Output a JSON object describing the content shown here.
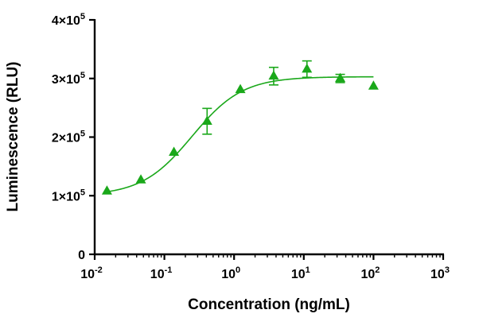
{
  "chart_data": {
    "type": "scatter",
    "xlabel": "Concentration (ng/mL)",
    "ylabel": "Luminescence (RLU)",
    "x_scale": "log",
    "xlim": [
      0.01,
      1000
    ],
    "ylim": [
      0,
      400000
    ],
    "x_ticks": [
      {
        "value": 0.01,
        "base": "10",
        "exp": "-2"
      },
      {
        "value": 0.1,
        "base": "10",
        "exp": "-1"
      },
      {
        "value": 1,
        "base": "10",
        "exp": "0"
      },
      {
        "value": 10,
        "base": "10",
        "exp": "1"
      },
      {
        "value": 100,
        "base": "10",
        "exp": "2"
      },
      {
        "value": 1000,
        "base": "10",
        "exp": "3"
      }
    ],
    "y_ticks": [
      {
        "value": 0,
        "mant": "0",
        "exp": ""
      },
      {
        "value": 100000,
        "mant": "1×10",
        "exp": "5"
      },
      {
        "value": 200000,
        "mant": "2×10",
        "exp": "5"
      },
      {
        "value": 300000,
        "mant": "3×10",
        "exp": "5"
      },
      {
        "value": 400000,
        "mant": "4×10",
        "exp": "5"
      }
    ],
    "grid": false,
    "color": "#1aa81a",
    "series": [
      {
        "marker": "triangle",
        "points": [
          {
            "x": 0.015,
            "y": 108000,
            "err": 0
          },
          {
            "x": 0.046,
            "y": 127000,
            "err": 0
          },
          {
            "x": 0.137,
            "y": 174000,
            "err": 0
          },
          {
            "x": 0.41,
            "y": 227000,
            "err": 22000
          },
          {
            "x": 1.23,
            "y": 281000,
            "err": 0
          },
          {
            "x": 3.7,
            "y": 304000,
            "err": 15000
          },
          {
            "x": 11.1,
            "y": 316000,
            "err": 14000
          },
          {
            "x": 33.3,
            "y": 300000,
            "err": 7000
          },
          {
            "x": 100,
            "y": 287000,
            "err": 0
          }
        ],
        "fit": {
          "model": "4PL",
          "bottom": 100000,
          "top": 303000,
          "ec50": 0.25,
          "hill": 1.2,
          "x_range": [
            0.015,
            100
          ]
        }
      }
    ]
  }
}
